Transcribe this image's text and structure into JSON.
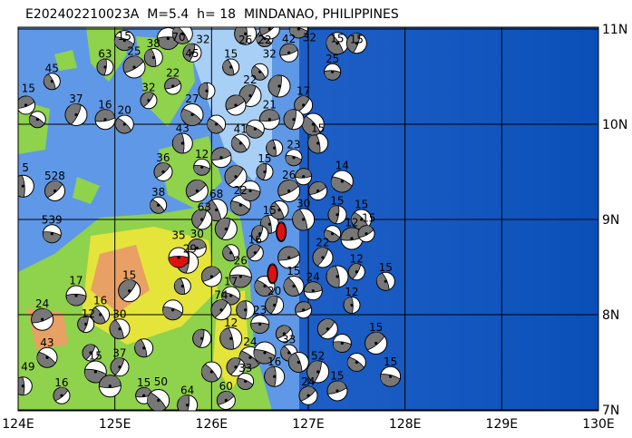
{
  "title": "E202402210023A  M=5.4  h= 18  MINDANAO, PHILIPPINES",
  "map": {
    "lon_range": [
      124,
      130
    ],
    "lat_range": [
      7,
      11
    ],
    "lon_ticks": [
      "124E",
      "125E",
      "126E",
      "127E",
      "128E",
      "129E",
      "130E"
    ],
    "lat_ticks": [
      "7N",
      "8N",
      "9N",
      "10N",
      "11N"
    ],
    "colors": {
      "deep_ocean": "#0a4fb8",
      "ocean": "#2a6ad0",
      "shelf": "#5f98e6",
      "shallow": "#a8d0f6",
      "lowland": "#8fd24c",
      "upland": "#e4e43a",
      "highland": "#e8a064",
      "mechanism_fill": "#777777",
      "main_event_fill": "#e01010"
    }
  },
  "events": [
    [
      125.66,
      8.6,
      "35",
      1
    ],
    [
      126.72,
      8.87,
      "",
      1
    ],
    [
      126.63,
      8.43,
      "",
      1
    ],
    [
      124.08,
      10.2,
      "15"
    ],
    [
      124.2,
      10.05,
      ""
    ],
    [
      124.05,
      9.35,
      "5"
    ],
    [
      124.38,
      9.3,
      "528"
    ],
    [
      124.35,
      8.85,
      "539"
    ],
    [
      124.35,
      10.45,
      "45"
    ],
    [
      124.6,
      10.1,
      "37"
    ],
    [
      124.9,
      10.05,
      "16"
    ],
    [
      125.1,
      10.0,
      "20"
    ],
    [
      124.9,
      10.6,
      "63"
    ],
    [
      125.2,
      10.6,
      "25"
    ],
    [
      125.1,
      10.88,
      "15"
    ],
    [
      125.4,
      10.7,
      "38"
    ],
    [
      125.35,
      10.25,
      "32"
    ],
    [
      125.55,
      10.9,
      "70"
    ],
    [
      125.7,
      10.95,
      "32"
    ],
    [
      125.8,
      10.75,
      "45"
    ],
    [
      125.6,
      10.4,
      "22"
    ],
    [
      125.8,
      10.1,
      "27"
    ],
    [
      125.7,
      9.8,
      "43"
    ],
    [
      125.5,
      9.5,
      "36"
    ],
    [
      125.9,
      9.55,
      "12"
    ],
    [
      126.05,
      9.1,
      "68"
    ],
    [
      125.9,
      9.0,
      "63"
    ],
    [
      125.85,
      8.7,
      "30"
    ],
    [
      125.45,
      9.15,
      "38"
    ],
    [
      125.75,
      8.55,
      "29"
    ],
    [
      126.0,
      8.4,
      ""
    ],
    [
      126.2,
      8.2,
      "17"
    ],
    [
      125.7,
      8.3,
      ""
    ],
    [
      125.15,
      8.25,
      "15"
    ],
    [
      124.6,
      8.2,
      "17"
    ],
    [
      124.85,
      8.0,
      "16"
    ],
    [
      124.7,
      7.9,
      "12"
    ],
    [
      124.25,
      7.95,
      "24"
    ],
    [
      124.3,
      7.55,
      "43"
    ],
    [
      124.05,
      7.25,
      "49"
    ],
    [
      124.45,
      7.15,
      "16"
    ],
    [
      124.8,
      7.4,
      "15"
    ],
    [
      125.05,
      7.85,
      "30"
    ],
    [
      125.05,
      7.45,
      "37"
    ],
    [
      125.3,
      7.15,
      "15"
    ],
    [
      125.45,
      7.1,
      "50"
    ],
    [
      125.75,
      7.05,
      "64"
    ],
    [
      126.15,
      7.1,
      "60"
    ],
    [
      126.35,
      7.3,
      "33"
    ],
    [
      126.2,
      7.75,
      "12"
    ],
    [
      126.1,
      8.05,
      "74"
    ],
    [
      126.5,
      7.9,
      "23"
    ],
    [
      126.8,
      7.6,
      "33"
    ],
    [
      127.1,
      7.4,
      "52"
    ],
    [
      127.3,
      7.2,
      "15"
    ],
    [
      127.5,
      7.5,
      ""
    ],
    [
      127.45,
      8.1,
      "12"
    ],
    [
      127.7,
      7.7,
      "15"
    ],
    [
      127.85,
      7.35,
      "15"
    ],
    [
      127.8,
      8.35,
      "15"
    ],
    [
      127.5,
      8.45,
      "12"
    ],
    [
      127.45,
      8.8,
      "12"
    ],
    [
      127.55,
      9.0,
      "15"
    ],
    [
      127.3,
      9.05,
      "15"
    ],
    [
      127.6,
      8.85,
      "15"
    ],
    [
      127.35,
      9.4,
      "14"
    ],
    [
      127.1,
      9.8,
      "15"
    ],
    [
      126.95,
      10.2,
      "17"
    ],
    [
      127.25,
      10.55,
      "25"
    ],
    [
      127.3,
      10.85,
      "15"
    ],
    [
      127.5,
      10.85,
      "15"
    ],
    [
      126.8,
      10.75,
      "42"
    ],
    [
      126.55,
      10.9,
      "22"
    ],
    [
      126.35,
      10.95,
      "26"
    ],
    [
      126.6,
      11.0,
      "32"
    ],
    [
      126.9,
      11.0,
      "32"
    ],
    [
      126.2,
      10.6,
      "15"
    ],
    [
      126.4,
      10.3,
      "22"
    ],
    [
      126.6,
      10.05,
      "21"
    ],
    [
      126.3,
      9.8,
      "41"
    ],
    [
      126.55,
      9.5,
      "15"
    ],
    [
      126.8,
      9.3,
      "26"
    ],
    [
      126.3,
      9.15,
      "22"
    ],
    [
      126.6,
      8.95,
      "15"
    ],
    [
      126.45,
      8.65,
      "16"
    ],
    [
      126.3,
      8.4,
      "26"
    ],
    [
      126.85,
      8.3,
      "15"
    ],
    [
      126.65,
      8.1,
      "20"
    ],
    [
      126.95,
      8.05,
      ""
    ],
    [
      126.4,
      7.55,
      "24"
    ],
    [
      126.65,
      7.35,
      "16"
    ],
    [
      127.0,
      7.15,
      "24"
    ],
    [
      126.85,
      9.65,
      "23"
    ],
    [
      126.95,
      9.0,
      "30"
    ],
    [
      127.15,
      8.6,
      "22"
    ],
    [
      127.05,
      8.25,
      "24"
    ],
    [
      126.5,
      10.55,
      ""
    ],
    [
      126.7,
      10.4,
      ""
    ],
    [
      126.25,
      10.2,
      ""
    ],
    [
      126.45,
      9.95,
      ""
    ],
    [
      126.65,
      9.75,
      ""
    ],
    [
      126.25,
      9.45,
      ""
    ],
    [
      126.4,
      9.3,
      ""
    ],
    [
      126.7,
      9.1,
      ""
    ],
    [
      126.5,
      8.85,
      ""
    ],
    [
      126.8,
      8.6,
      ""
    ],
    [
      126.55,
      8.3,
      ""
    ],
    [
      126.35,
      8.05,
      ""
    ],
    [
      126.75,
      7.8,
      ""
    ],
    [
      126.55,
      7.6,
      ""
    ],
    [
      126.9,
      7.5,
      ""
    ],
    [
      126.25,
      7.45,
      ""
    ],
    [
      126.95,
      9.45,
      ""
    ],
    [
      127.05,
      10.0,
      ""
    ],
    [
      126.85,
      10.05,
      ""
    ],
    [
      127.1,
      9.3,
      ""
    ],
    [
      127.25,
      8.85,
      ""
    ],
    [
      127.3,
      8.4,
      ""
    ],
    [
      127.2,
      7.85,
      ""
    ],
    [
      127.35,
      7.7,
      ""
    ],
    [
      126.2,
      8.65,
      ""
    ],
    [
      126.15,
      8.9,
      ""
    ],
    [
      126.1,
      9.65,
      ""
    ],
    [
      126.05,
      10.0,
      ""
    ],
    [
      125.95,
      10.35,
      ""
    ],
    [
      125.85,
      9.3,
      ""
    ],
    [
      125.6,
      8.05,
      ""
    ],
    [
      125.3,
      7.65,
      ""
    ],
    [
      124.75,
      7.6,
      ""
    ],
    [
      124.95,
      7.25,
      ""
    ],
    [
      126.0,
      7.4,
      ""
    ],
    [
      125.9,
      7.75,
      ""
    ]
  ]
}
